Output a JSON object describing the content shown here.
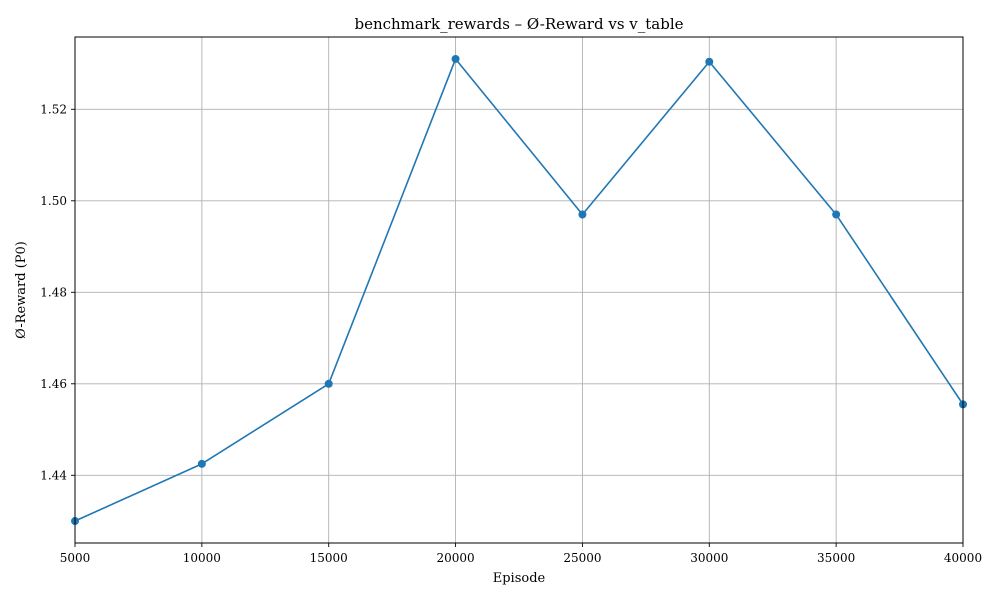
{
  "chart_data": {
    "type": "line",
    "title": "benchmark_rewards – Ø-Reward vs v_table",
    "xlabel": "Episode",
    "ylabel": "Ø-Reward (P0)",
    "xlim": [
      5000,
      40000
    ],
    "ylim": [
      1.4252,
      1.5358
    ],
    "xticks": [
      5000,
      10000,
      15000,
      20000,
      25000,
      30000,
      35000,
      40000
    ],
    "xtick_labels": [
      "5000",
      "10000",
      "15000",
      "20000",
      "25000",
      "30000",
      "35000",
      "40000"
    ],
    "yticks": [
      1.44,
      1.46,
      1.48,
      1.5,
      1.52
    ],
    "ytick_labels": [
      "1.44",
      "1.46",
      "1.48",
      "1.50",
      "1.52"
    ],
    "grid": true,
    "marker": "circle",
    "color": "#1f77b4",
    "series": [
      {
        "x": [
          5000,
          10000,
          15000,
          20000,
          25000,
          30000,
          35000,
          40000
        ],
        "values": [
          1.43,
          1.4425,
          1.46,
          1.531,
          1.497,
          1.5304,
          1.497,
          1.4555
        ]
      }
    ]
  }
}
